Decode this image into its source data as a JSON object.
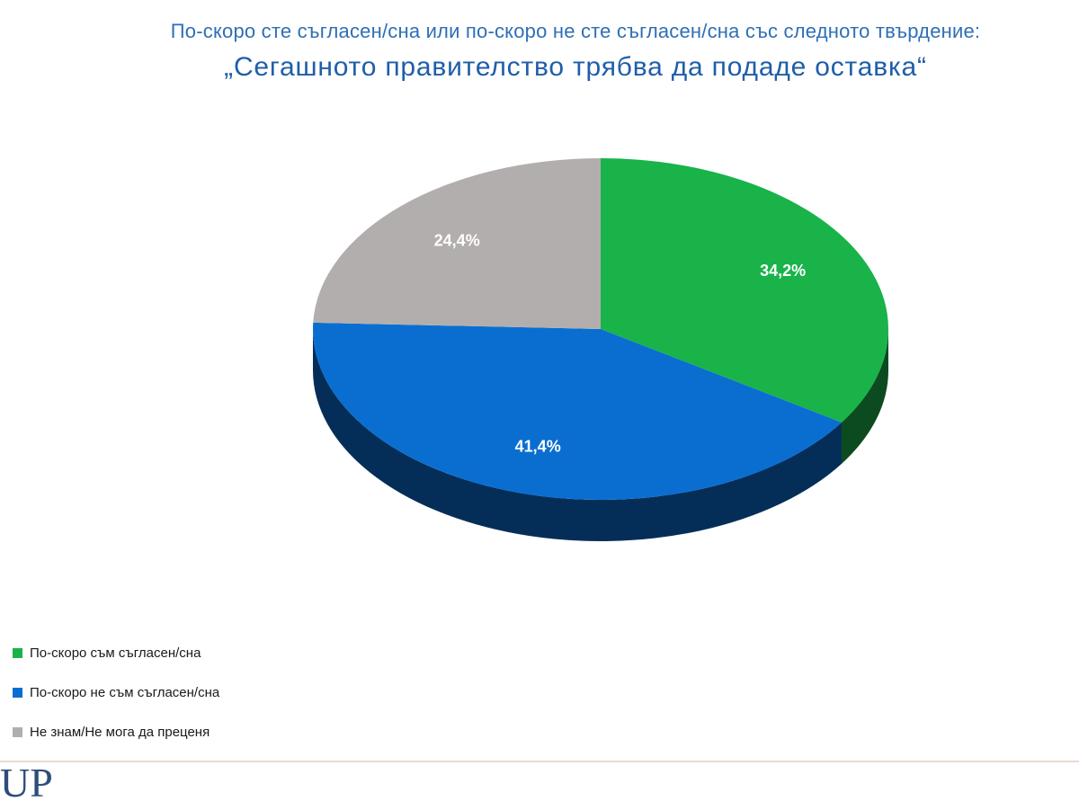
{
  "header": {
    "subtitle": "По-скоро сте съгласен/сна или по-скоро не сте съгласен/сна със следното твърдение:",
    "title": "„Сегашното правителство трябва да подаде оставка“"
  },
  "chart_data": {
    "type": "pie",
    "title": "„Сегашното правителство трябва да подаде оставка“",
    "subtitle": "По-скоро сте съгласен/сна или по-скоро не сте съгласен/сна със следното твърдение:",
    "unit": "%",
    "slices": [
      {
        "name": "По-скоро съм съгласен/сна",
        "value": 34.2,
        "label": "34,2%",
        "color": "#19b34a"
      },
      {
        "name": "По-скоро не съм съгласен/сна",
        "value": 41.4,
        "label": "41,4%",
        "color": "#0a6ed1"
      },
      {
        "name": "Не знам/Не мога да преценя",
        "value": 24.4,
        "label": "24,4%",
        "color": "#b3aeae"
      }
    ],
    "legend_position": "bottom-left",
    "style": "3d"
  },
  "legend": {
    "items": [
      {
        "label": "По-скоро съм съгласен/сна",
        "color": "#19b34a"
      },
      {
        "label": "По-скоро не съм съгласен/сна",
        "color": "#0a6ed1"
      },
      {
        "label": "Не знам/Не мога да преценя",
        "color": "#b3aeae"
      }
    ]
  },
  "logo": {
    "text": "UP"
  }
}
